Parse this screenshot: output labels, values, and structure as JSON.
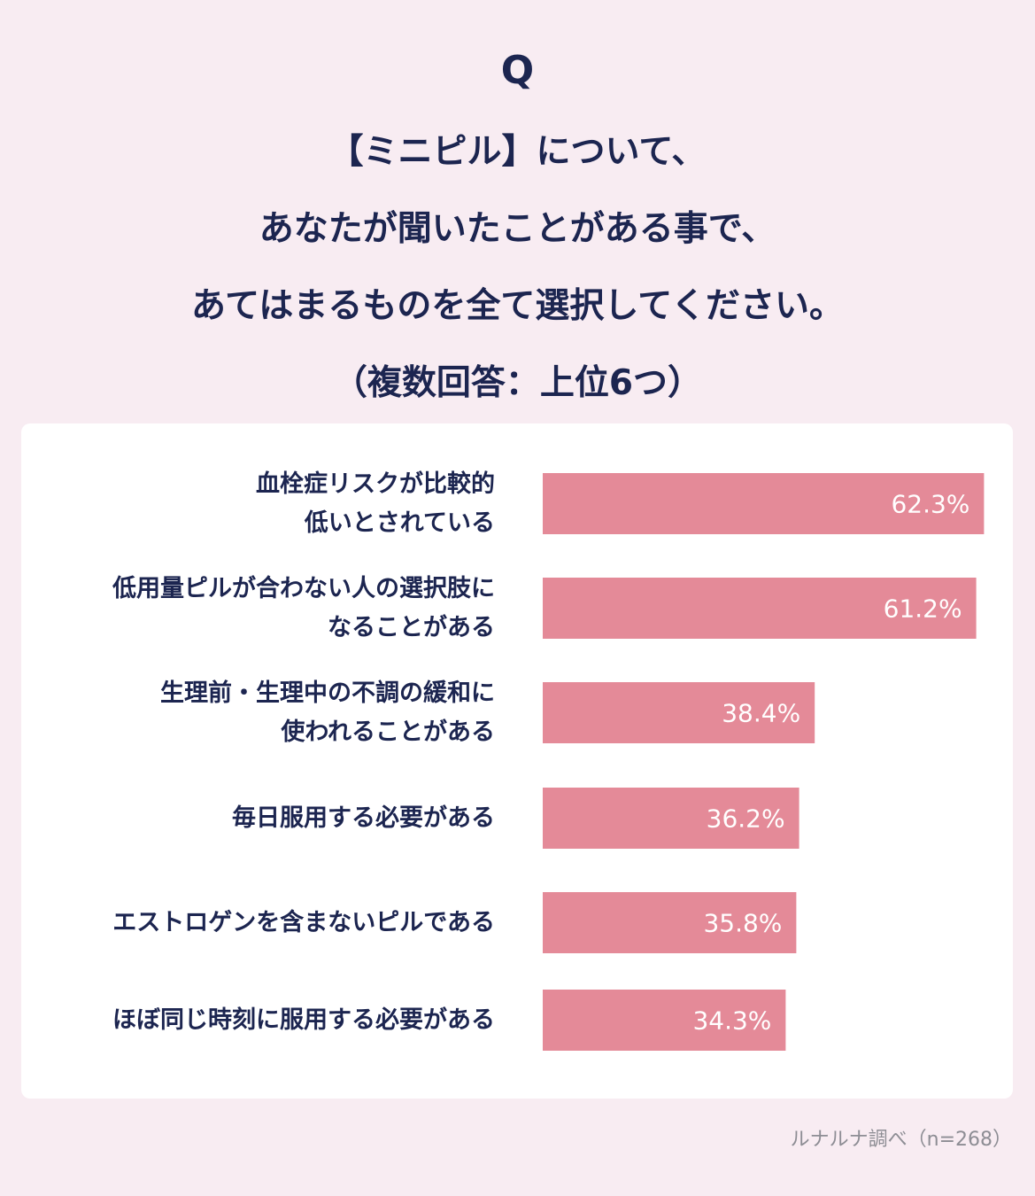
{
  "header": {
    "q_mark": "Q",
    "question_lines": [
      "【ミニピル】について、",
      "あなたが聞いたことがある事で、",
      "あてはまるものを全て選択してください。",
      "（複数回答：上位6つ）"
    ]
  },
  "chart_data": {
    "type": "bar",
    "orientation": "horizontal",
    "categories": [
      [
        "血栓症リスクが比較的",
        "低いとされている"
      ],
      [
        "低用量ピルが合わない人の選択肢に",
        "なることがある"
      ],
      [
        "生理前・生理中の不調の緩和に",
        "使われることがある"
      ],
      [
        "毎日服用する必要がある"
      ],
      [
        "エストロゲンを含まないピルである"
      ],
      [
        "ほぼ同じ時刻に服用する必要がある"
      ]
    ],
    "values": [
      62.3,
      61.2,
      38.4,
      36.2,
      35.8,
      34.3
    ],
    "value_labels": [
      "62.3%",
      "61.2%",
      "38.4%",
      "36.2%",
      "35.8%",
      "34.3%"
    ],
    "unit": "%",
    "xlim": [
      0,
      100
    ],
    "bar_color": "#e48a98",
    "grid": false,
    "legend": "none"
  },
  "footer": {
    "source": "ルナルナ調べ（n=268）"
  },
  "colors": {
    "background": "#f8ecf2",
    "card": "#ffffff",
    "text": "#1c2550",
    "bar": "#e48a98",
    "source_text": "#8d8d94"
  }
}
